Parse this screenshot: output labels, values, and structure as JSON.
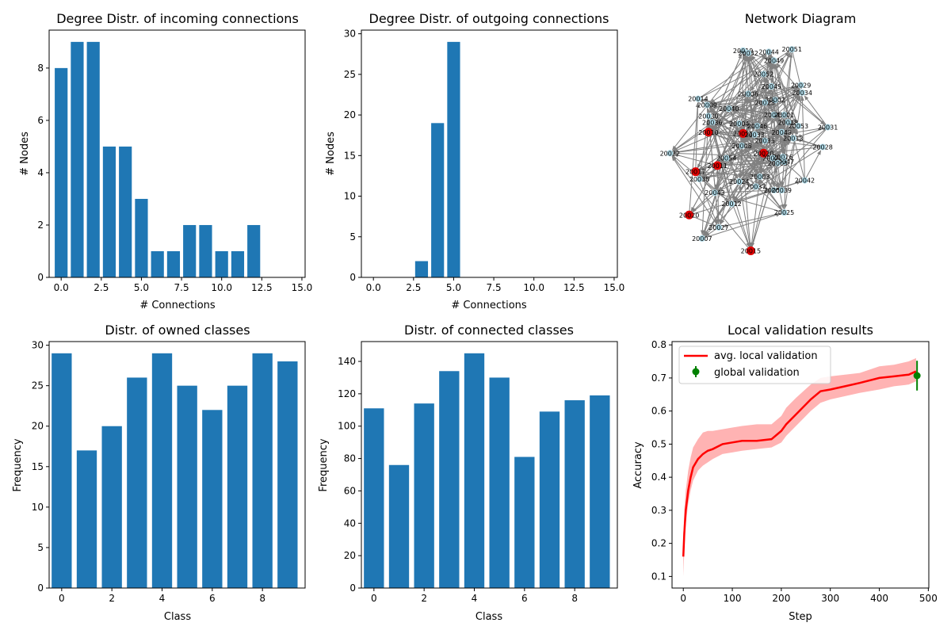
{
  "colors": {
    "bar": "#1f77b4",
    "edge": "#808080",
    "node": "#add8e6",
    "node_highlight": "#e00000",
    "line": "#ff0000",
    "band": "#ff9999",
    "global": "#008000"
  },
  "chart_data": [
    {
      "type": "bar",
      "title": "Degree Distr. of incoming connections",
      "xlabel": "# Connections",
      "ylabel": "# Nodes",
      "xlim": [
        -0.75,
        15.2
      ],
      "ylim": [
        0,
        9.45
      ],
      "xticks": [
        0,
        2.5,
        5,
        7.5,
        10,
        12.5,
        15
      ],
      "xtick_labels": [
        "0.0",
        "2.5",
        "5.0",
        "7.5",
        "10.0",
        "12.5",
        "15.0"
      ],
      "yticks": [
        0,
        2,
        4,
        6,
        8
      ],
      "ytick_labels": [
        "0",
        "2",
        "4",
        "6",
        "8"
      ],
      "x": [
        0,
        1,
        2,
        3,
        4,
        5,
        6,
        7,
        8,
        9,
        10,
        11,
        12
      ],
      "values": [
        8,
        9,
        9,
        5,
        5,
        3,
        1,
        1,
        2,
        2,
        1,
        1,
        2
      ]
    },
    {
      "type": "bar",
      "title": "Degree Distr. of outgoing connections",
      "xlabel": "# Connections",
      "ylabel": "# Nodes",
      "xlim": [
        -0.75,
        15.2
      ],
      "ylim": [
        0,
        30.45
      ],
      "xticks": [
        0,
        2.5,
        5,
        7.5,
        10,
        12.5,
        15
      ],
      "xtick_labels": [
        "0.0",
        "2.5",
        "5.0",
        "7.5",
        "10.0",
        "12.5",
        "15.0"
      ],
      "yticks": [
        0,
        5,
        10,
        15,
        20,
        25,
        30
      ],
      "ytick_labels": [
        "0",
        "5",
        "10",
        "15",
        "20",
        "25",
        "30"
      ],
      "x": [
        3,
        4,
        5
      ],
      "values": [
        2,
        19,
        29
      ]
    },
    {
      "type": "network",
      "title": "Network Diagram",
      "nodes": [
        {
          "id": "20019",
          "x": 0.215,
          "y": 0.025
        },
        {
          "id": "20032",
          "x": 0.235,
          "y": 0.035
        },
        {
          "id": "20044",
          "x": 0.315,
          "y": 0.03
        },
        {
          "id": "20051",
          "x": 0.405,
          "y": 0.02
        },
        {
          "id": "20049",
          "x": 0.335,
          "y": 0.065
        },
        {
          "id": "20052",
          "x": 0.295,
          "y": 0.12
        },
        {
          "id": "20045",
          "x": 0.325,
          "y": 0.17
        },
        {
          "id": "20029",
          "x": 0.44,
          "y": 0.165
        },
        {
          "id": "20034",
          "x": 0.445,
          "y": 0.195
        },
        {
          "id": "20006",
          "x": 0.235,
          "y": 0.2
        },
        {
          "id": "20002",
          "x": 0.34,
          "y": 0.225
        },
        {
          "id": "20014",
          "x": 0.04,
          "y": 0.22
        },
        {
          "id": "20009",
          "x": 0.075,
          "y": 0.245
        },
        {
          "id": "20023",
          "x": 0.3,
          "y": 0.235
        },
        {
          "id": "20040",
          "x": 0.16,
          "y": 0.26
        },
        {
          "id": "20030",
          "x": 0.08,
          "y": 0.29
        },
        {
          "id": "20041",
          "x": 0.335,
          "y": 0.285
        },
        {
          "id": "20001",
          "x": 0.375,
          "y": 0.285
        },
        {
          "id": "20036",
          "x": 0.095,
          "y": 0.315
        },
        {
          "id": "20004",
          "x": 0.2,
          "y": 0.32
        },
        {
          "id": "20046",
          "x": 0.27,
          "y": 0.33
        },
        {
          "id": "20018",
          "x": 0.39,
          "y": 0.315
        },
        {
          "id": "20053",
          "x": 0.43,
          "y": 0.33
        },
        {
          "id": "20031",
          "x": 0.545,
          "y": 0.335
        },
        {
          "id": "20010",
          "x": 0.08,
          "y": 0.355
        },
        {
          "id": "20011",
          "x": 0.215,
          "y": 0.36
        },
        {
          "id": "20033",
          "x": 0.26,
          "y": 0.365
        },
        {
          "id": "20048",
          "x": 0.365,
          "y": 0.355
        },
        {
          "id": "20035",
          "x": 0.3,
          "y": 0.39
        },
        {
          "id": "20013",
          "x": 0.41,
          "y": 0.38
        },
        {
          "id": "20008",
          "x": 0.21,
          "y": 0.41
        },
        {
          "id": "20028",
          "x": 0.525,
          "y": 0.415
        },
        {
          "id": "20022",
          "x": -0.07,
          "y": 0.44
        },
        {
          "id": "20020",
          "x": 0.295,
          "y": 0.44
        },
        {
          "id": "20054",
          "x": 0.15,
          "y": 0.46
        },
        {
          "id": "20021",
          "x": 0.33,
          "y": 0.46
        },
        {
          "id": "20026",
          "x": 0.37,
          "y": 0.455
        },
        {
          "id": "20047",
          "x": 0.375,
          "y": 0.475
        },
        {
          "id": "20005",
          "x": 0.35,
          "y": 0.48
        },
        {
          "id": "20011",
          "x": 0.115,
          "y": 0.49
        },
        {
          "id": "20017",
          "x": 0.03,
          "y": 0.515
        },
        {
          "id": "20038",
          "x": 0.045,
          "y": 0.545
        },
        {
          "id": "20003",
          "x": 0.28,
          "y": 0.535
        },
        {
          "id": "20024",
          "x": 0.2,
          "y": 0.555
        },
        {
          "id": "20042",
          "x": 0.455,
          "y": 0.55
        },
        {
          "id": "20037",
          "x": 0.265,
          "y": 0.575
        },
        {
          "id": "20055",
          "x": 0.335,
          "y": 0.59
        },
        {
          "id": "20039",
          "x": 0.365,
          "y": 0.59
        },
        {
          "id": "20043",
          "x": 0.105,
          "y": 0.6
        },
        {
          "id": "20012",
          "x": 0.17,
          "y": 0.645
        },
        {
          "id": "20025",
          "x": 0.375,
          "y": 0.68
        },
        {
          "id": "20020",
          "x": 0.005,
          "y": 0.69
        },
        {
          "id": "20027",
          "x": 0.12,
          "y": 0.74
        },
        {
          "id": "20007",
          "x": 0.055,
          "y": 0.785
        },
        {
          "id": "20015",
          "x": 0.245,
          "y": 0.835
        }
      ],
      "highlighted": [
        "20010",
        "20011",
        "20017",
        "20020",
        "20015"
      ]
    },
    {
      "type": "bar",
      "title": "Distr. of owned classes",
      "xlabel": "Class",
      "ylabel": "Frequency",
      "xlim": [
        -0.5,
        9.7
      ],
      "ylim": [
        0,
        30.45
      ],
      "xticks": [
        0,
        2,
        4,
        6,
        8
      ],
      "xtick_labels": [
        "0",
        "2",
        "4",
        "6",
        "8"
      ],
      "yticks": [
        0,
        5,
        10,
        15,
        20,
        25,
        30
      ],
      "ytick_labels": [
        "0",
        "5",
        "10",
        "15",
        "20",
        "25",
        "30"
      ],
      "x": [
        0,
        1,
        2,
        3,
        4,
        5,
        6,
        7,
        8,
        9
      ],
      "values": [
        29,
        17,
        20,
        26,
        29,
        25,
        22,
        25,
        29,
        28
      ]
    },
    {
      "type": "bar",
      "title": "Distr. of connected classes",
      "xlabel": "Class",
      "ylabel": "Frequency",
      "xlim": [
        -0.5,
        9.7
      ],
      "ylim": [
        0,
        152.25
      ],
      "xticks": [
        0,
        2,
        4,
        6,
        8
      ],
      "xtick_labels": [
        "0",
        "2",
        "4",
        "6",
        "8"
      ],
      "yticks": [
        0,
        20,
        40,
        60,
        80,
        100,
        120,
        140
      ],
      "ytick_labels": [
        "0",
        "20",
        "40",
        "60",
        "80",
        "100",
        "120",
        "140"
      ],
      "x": [
        0,
        1,
        2,
        3,
        4,
        5,
        6,
        7,
        8,
        9
      ],
      "values": [
        111,
        76,
        114,
        134,
        145,
        130,
        81,
        109,
        116,
        119
      ]
    },
    {
      "type": "line",
      "title": "Local validation results",
      "xlabel": "Step",
      "ylabel": "Accuracy",
      "xlim": [
        -23,
        501
      ],
      "ylim": [
        0.065,
        0.81
      ],
      "xticks": [
        0,
        100,
        200,
        300,
        400,
        500
      ],
      "xtick_labels": [
        "0",
        "100",
        "200",
        "300",
        "400",
        "500"
      ],
      "yticks": [
        0.1,
        0.2,
        0.3,
        0.4,
        0.5,
        0.6,
        0.7,
        0.8
      ],
      "ytick_labels": [
        "0.1",
        "0.2",
        "0.3",
        "0.4",
        "0.5",
        "0.6",
        "0.7",
        "0.8"
      ],
      "legend_position": "top-left",
      "series": [
        {
          "name": "avg. local validation",
          "style": "line",
          "x": [
            0,
            2,
            5,
            10,
            15,
            20,
            30,
            40,
            50,
            60,
            80,
            100,
            120,
            150,
            180,
            200,
            210,
            230,
            260,
            280,
            300,
            330,
            360,
            400,
            430,
            460,
            475
          ],
          "y": [
            0.16,
            0.23,
            0.3,
            0.36,
            0.4,
            0.43,
            0.455,
            0.47,
            0.48,
            0.485,
            0.5,
            0.505,
            0.51,
            0.51,
            0.515,
            0.54,
            0.56,
            0.59,
            0.635,
            0.66,
            0.665,
            0.675,
            0.685,
            0.7,
            0.705,
            0.71,
            0.72
          ],
          "lower": [
            0.1,
            0.18,
            0.26,
            0.32,
            0.36,
            0.39,
            0.42,
            0.435,
            0.445,
            0.455,
            0.47,
            0.475,
            0.48,
            0.485,
            0.49,
            0.505,
            0.525,
            0.555,
            0.6,
            0.625,
            0.635,
            0.645,
            0.655,
            0.665,
            0.675,
            0.68,
            0.69
          ],
          "upper": [
            0.22,
            0.3,
            0.36,
            0.42,
            0.46,
            0.49,
            0.515,
            0.535,
            0.54,
            0.54,
            0.545,
            0.55,
            0.555,
            0.56,
            0.56,
            0.585,
            0.61,
            0.64,
            0.68,
            0.7,
            0.705,
            0.71,
            0.715,
            0.735,
            0.74,
            0.75,
            0.76
          ]
        },
        {
          "name": "global validation",
          "style": "errorbar",
          "x": [
            477
          ],
          "y": [
            0.707
          ],
          "yerr": [
            0.045
          ]
        }
      ]
    }
  ]
}
